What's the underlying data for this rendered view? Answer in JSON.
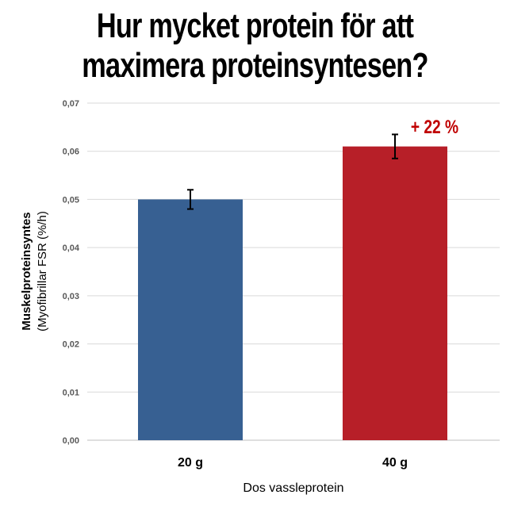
{
  "chart_data": {
    "type": "bar",
    "title": "Hur mycket protein för att maximera proteinsyntesen?",
    "title_lines": [
      "Hur mycket protein för att",
      "maximera proteinsyntesen?"
    ],
    "categories": [
      "20 g",
      "40 g"
    ],
    "values": [
      0.05,
      0.061
    ],
    "errors": [
      0.002,
      0.0025
    ],
    "colors": [
      "#376092",
      "#b71f28"
    ],
    "xlabel": "Dos vassleprotein",
    "ylabel": "Muskelproteinsyntes",
    "ylabel2": "(Myofibrillar FSR (%/h)",
    "ylim": [
      0,
      0.07
    ],
    "yticks": [
      "0,00",
      "0,01",
      "0,02",
      "0,03",
      "0,04",
      "0,05",
      "0,06",
      "0,07"
    ],
    "grid": true,
    "annotation": "+ 22 %"
  }
}
